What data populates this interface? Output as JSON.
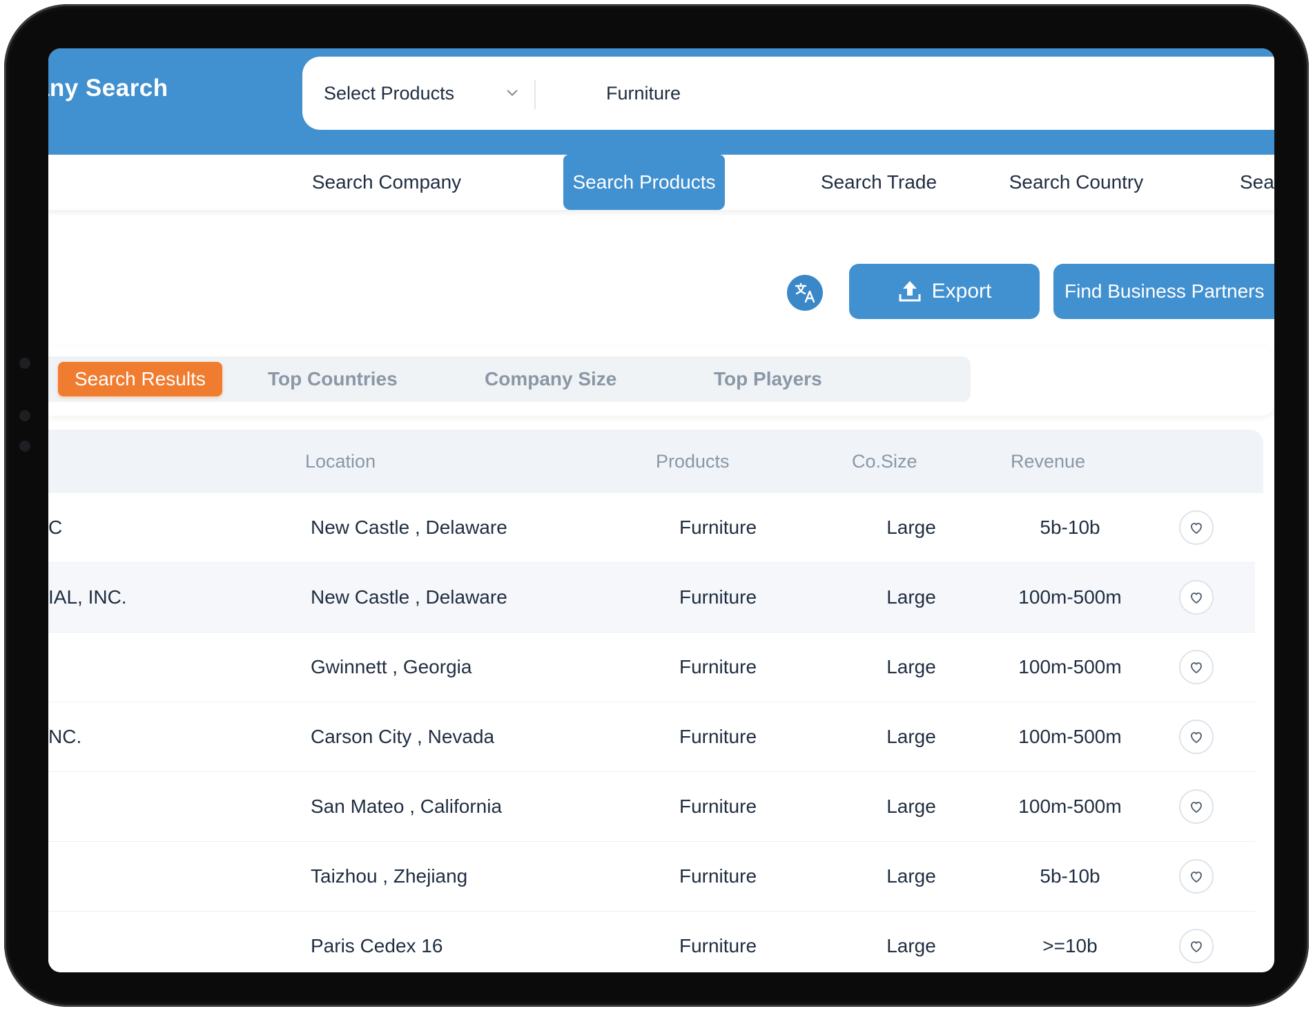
{
  "header": {
    "brand_title": "pany Search",
    "select_label": "Select Products",
    "search_value": "Furniture"
  },
  "nav": {
    "tabs": [
      {
        "label": "Search Company"
      },
      {
        "label": "Search Products",
        "active": true
      },
      {
        "label": "Search Trade"
      },
      {
        "label": "Search Country"
      },
      {
        "label": "Sea"
      }
    ]
  },
  "actions": {
    "translate_icon": "translate-icon",
    "export_label": "Export",
    "partners_label": "Find Business Partners"
  },
  "subtabs": [
    {
      "label": "Search Results",
      "active": true
    },
    {
      "label": "Top Countries"
    },
    {
      "label": "Company Size"
    },
    {
      "label": "Top Players"
    }
  ],
  "table": {
    "columns": [
      "Location",
      "Products",
      "Co.Size",
      "Revenue"
    ],
    "rows": [
      {
        "name": "C",
        "location": "New Castle , Delaware",
        "products": "Furniture",
        "size": "Large",
        "revenue": "5b-10b"
      },
      {
        "name": "IAL, INC.",
        "location": "New Castle , Delaware",
        "products": "Furniture",
        "size": "Large",
        "revenue": "100m-500m"
      },
      {
        "name": "",
        "location": "Gwinnett , Georgia",
        "products": "Furniture",
        "size": "Large",
        "revenue": "100m-500m"
      },
      {
        "name": "NC.",
        "location": "Carson City , Nevada",
        "products": "Furniture",
        "size": "Large",
        "revenue": "100m-500m"
      },
      {
        "name": "",
        "location": "San Mateo , California",
        "products": "Furniture",
        "size": "Large",
        "revenue": "100m-500m"
      },
      {
        "name": "",
        "location": "Taizhou , Zhejiang",
        "products": "Furniture",
        "size": "Large",
        "revenue": "5b-10b"
      },
      {
        "name": "",
        "location": "Paris Cedex 16",
        "products": "Furniture",
        "size": "Large",
        "revenue": ">=10b"
      }
    ]
  },
  "colors": {
    "primary": "#4190cf",
    "accent_orange": "#f07c2f",
    "text_dark": "#1f2d40",
    "text_muted": "#8a97a6"
  }
}
